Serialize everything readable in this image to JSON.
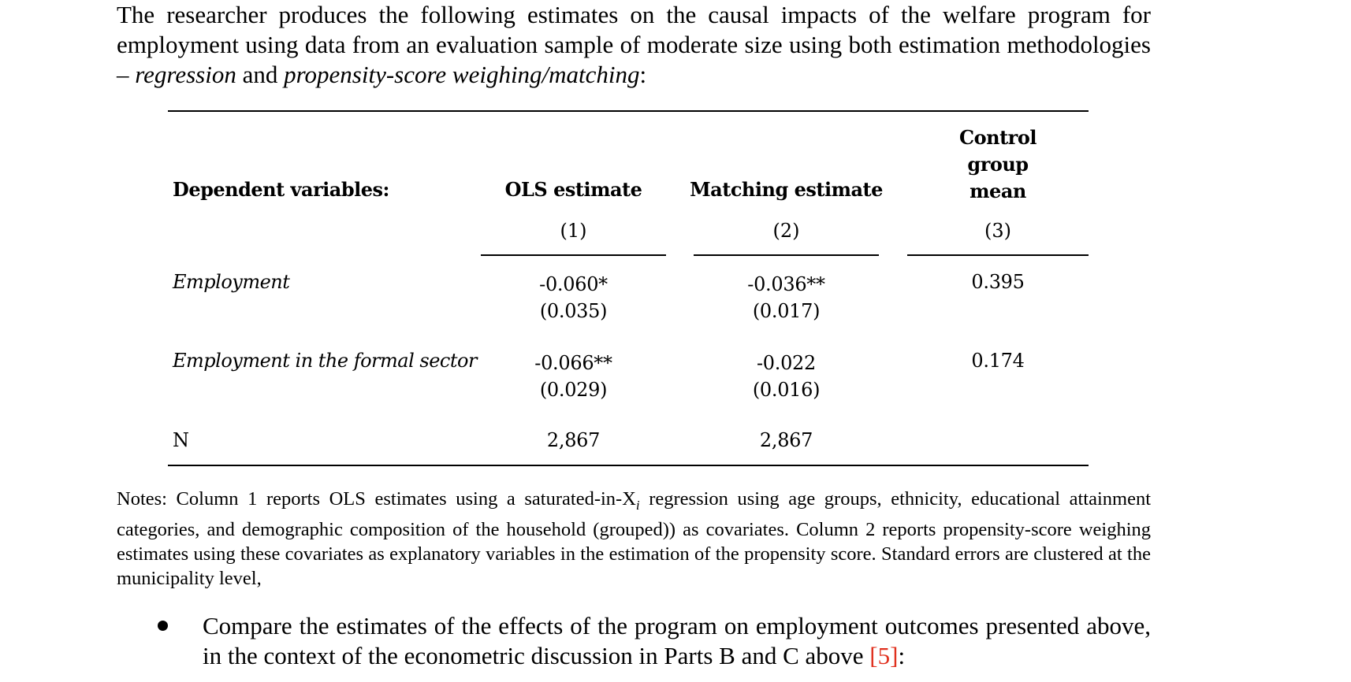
{
  "intro": {
    "text_before": "The researcher produces the following estimates on the causal impacts of the welfare program for employment using data from an evaluation sample of moderate size using both estimation methodologies – ",
    "method1": "regression",
    "text_and": " and ",
    "method2": "propensity-score weighing/matching",
    "text_after": ":"
  },
  "table": {
    "header_dep": "Dependent variables:",
    "header_ols": "OLS estimate",
    "header_match": "Matching estimate",
    "header_ctrl_1": "Control",
    "header_ctrl_2": "group",
    "header_ctrl_3": "mean",
    "colnum_1": "(1)",
    "colnum_2": "(2)",
    "colnum_3": "(3)",
    "rows": [
      {
        "label": "Employment",
        "ols": "-0.060*",
        "ols_se": "(0.035)",
        "match": "-0.036**",
        "match_se": "(0.017)",
        "ctrl": "0.395"
      },
      {
        "label": "Employment in the formal sector",
        "ols": "-0.066**",
        "ols_se": "(0.029)",
        "match": "-0.022",
        "match_se": "(0.016)",
        "ctrl": "0.174"
      }
    ],
    "n_label": "N",
    "n_ols": "2,867",
    "n_match": "2,867"
  },
  "notes": {
    "part1": "Notes: Column 1 reports OLS estimates using a saturated-in-X",
    "subscript": "i",
    "part2": " regression using age groups, ethnicity, educational attainment categories, and demographic composition of the household (grouped)) as covariates. Column 2 reports propensity-score weighing estimates using these covariates as explanatory variables in the estimation of the propensity score. Standard errors are clustered at the municipality level,"
  },
  "question": {
    "text": "Compare the estimates of the effects of the program on employment outcomes presented above, in the context of the econometric discussion in Parts B and C above ",
    "marks": "[5]",
    "end": ":"
  }
}
